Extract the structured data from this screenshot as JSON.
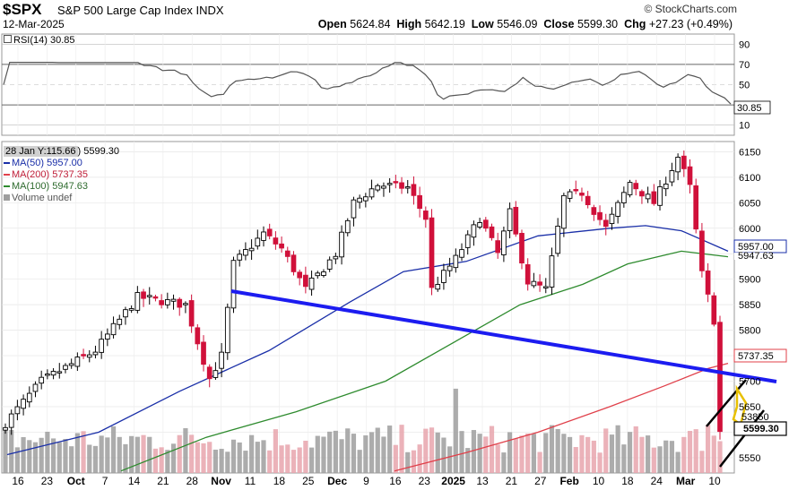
{
  "header": {
    "symbol": "$SPX",
    "name": "S&P 500 Large Cap Index",
    "exchange": "INDX",
    "date": "12-Mar-2025",
    "brand": "© StockCharts.com",
    "open_label": "Open",
    "open": "5624.84",
    "high_label": "High",
    "high": "5642.19",
    "low_label": "Low",
    "low": "5546.09",
    "close_label": "Close",
    "close": "5599.30",
    "chg_label": "Chg",
    "chg": "+27.23 (+0.49%)"
  },
  "rsi": {
    "label": "RSI(14) 30.85",
    "value_tag": "30.85",
    "ticks": [
      "90",
      "70",
      "50",
      "30",
      "10"
    ],
    "colors": {
      "line": "#555555",
      "levels": "#888888"
    }
  },
  "legend": {
    "hover_label": "28 Jan Y:115.66",
    "price_label": ") 5599.30",
    "ma50": "MA(50) 5957.00",
    "ma200": "MA(200) 5737.35",
    "ma100": "MA(100) 5947.63",
    "volume": "Volume undef"
  },
  "price_tags": {
    "ma50": "5957.00",
    "ma100": "5947.63",
    "ma200": "5737.35",
    "volume": "53850",
    "close": "5599.30"
  },
  "chart_data": {
    "type": "candlestick",
    "yticks": [
      "6150",
      "6100",
      "6050",
      "6000",
      "5950",
      "5900",
      "5850",
      "5800",
      "5750",
      "5700",
      "5650",
      "5600",
      "5550"
    ],
    "ylim": [
      5520,
      6170
    ],
    "x_labels": [
      "16",
      "23",
      "Oct",
      "7",
      "14",
      "21",
      "28",
      "Nov",
      "11",
      "18",
      "25",
      "Dec",
      "9",
      "16",
      "23",
      "2025",
      "13",
      "21",
      "27",
      "Feb",
      "10",
      "18",
      "24",
      "Mar",
      "10"
    ],
    "bold_labels": [
      "Oct",
      "Nov",
      "Dec",
      "2025",
      "Feb",
      "Mar"
    ],
    "colors": {
      "up": "#000000",
      "down": "#d0103a",
      "ma50": "#1a2fa8",
      "ma100": "#2e8b2e",
      "ma200": "#e0404a",
      "trend": "#1c1cf0",
      "channel": "#000000",
      "highlight": "#e8c000",
      "volume_up": "#9e9e9e",
      "volume_down": "#e8a4ad"
    },
    "series": [
      {
        "name": "MA(50)",
        "last": 5957.0
      },
      {
        "name": "MA(100)",
        "last": 5947.63
      },
      {
        "name": "MA(200)",
        "last": 5737.35
      }
    ]
  }
}
